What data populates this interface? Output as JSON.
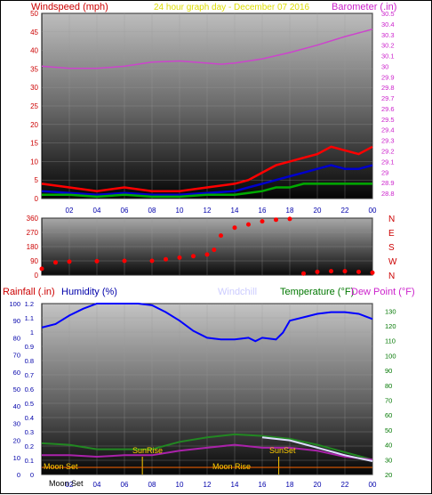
{
  "chart_data": [
    {
      "type": "line",
      "panel": "wind-baro",
      "title": "24 hour graph day - December 07 2016",
      "left_axis_label": "Windspeed (mph)",
      "right_axis_label": "Barometer (.in)",
      "x_ticks": [
        "02",
        "04",
        "06",
        "08",
        "10",
        "12",
        "14",
        "16",
        "18",
        "20",
        "22",
        "00"
      ],
      "left_ticks": [
        "0",
        "5",
        "10",
        "15",
        "20",
        "25",
        "30",
        "35",
        "40",
        "45",
        "50"
      ],
      "right_ticks": [
        "28.8",
        "28.9",
        "29",
        "29.1",
        "29.2",
        "29.3",
        "29.4",
        "29.5",
        "29.6",
        "29.7",
        "29.8",
        "29.9",
        "30",
        "30.1",
        "30.2",
        "30.3",
        "30.4",
        "30.5"
      ],
      "left_ylim": [
        0,
        50
      ],
      "right_ylim": [
        28.75,
        30.5
      ],
      "grid": true,
      "series": [
        {
          "axis": "right",
          "color": "#cc44cc",
          "x": [
            0,
            2,
            4,
            6,
            8,
            10,
            12,
            13,
            14,
            16,
            18,
            20,
            22,
            24
          ],
          "values": [
            30.0,
            29.98,
            29.98,
            30.0,
            30.04,
            30.05,
            30.03,
            30.02,
            30.03,
            30.07,
            30.13,
            30.2,
            30.28,
            30.35
          ]
        },
        {
          "color": "#ff0000",
          "x": [
            0,
            2,
            4,
            6,
            8,
            10,
            12,
            14,
            15,
            16,
            17,
            18,
            19,
            20,
            21,
            22,
            23,
            24
          ],
          "values": [
            4,
            3,
            2,
            3,
            2,
            2,
            3,
            4,
            5,
            7,
            9,
            10,
            11,
            12,
            14,
            13,
            12,
            14
          ]
        },
        {
          "color": "#0000cc",
          "x": [
            0,
            2,
            4,
            6,
            8,
            10,
            12,
            14,
            15,
            16,
            17,
            18,
            19,
            20,
            21,
            22,
            23,
            24
          ],
          "values": [
            2,
            1.5,
            1,
            1.5,
            1,
            1,
            1.5,
            2,
            3,
            4,
            5,
            6,
            7,
            8,
            9,
            8,
            8,
            9
          ]
        },
        {
          "color": "#00aa00",
          "x": [
            0,
            2,
            4,
            6,
            8,
            10,
            12,
            14,
            15,
            16,
            17,
            18,
            19,
            20,
            21,
            22,
            23,
            24
          ],
          "values": [
            1,
            1,
            0.5,
            1,
            0.5,
            0.5,
            1,
            1,
            1.5,
            2,
            3,
            3,
            4,
            4,
            4,
            4,
            4,
            4
          ]
        }
      ]
    },
    {
      "type": "scatter",
      "panel": "wind-direction",
      "left_ticks": [
        "0",
        "90",
        "180",
        "270",
        "360"
      ],
      "right_labels": [
        "N",
        "W",
        "S",
        "E",
        "N"
      ],
      "ylim": [
        0,
        360
      ],
      "grid": true,
      "series": [
        {
          "color": "#ff0000",
          "x": [
            0,
            1,
            2,
            4,
            6,
            8,
            9,
            10,
            11,
            12,
            12.5,
            13,
            14,
            15,
            16,
            17,
            18,
            19,
            20,
            21,
            22,
            23,
            24
          ],
          "values": [
            40,
            80,
            85,
            88,
            90,
            90,
            100,
            110,
            120,
            130,
            160,
            250,
            300,
            320,
            340,
            350,
            355,
            10,
            20,
            25,
            25,
            20,
            15
          ]
        }
      ]
    },
    {
      "type": "line",
      "panel": "rain-hum-temp",
      "left_axis_label": "Rainfall (.in)",
      "left2_axis_label": "Humidity (%)",
      "windchill_label": "Windchill",
      "temperature_label": "Temperature (°F)",
      "dewpoint_label": "Dew Point (°F)",
      "x_ticks": [
        "02",
        "04",
        "06",
        "08",
        "10",
        "12",
        "14",
        "16",
        "18",
        "20",
        "22",
        "00"
      ],
      "rain_ticks": [
        "0",
        "0.1",
        "0.2",
        "0.3",
        "0.4",
        "0.5",
        "0.6",
        "0.7",
        "0.8",
        "0.9",
        "1",
        "1.1",
        "1.2"
      ],
      "humidity_ticks": [
        "0",
        "10",
        "20",
        "30",
        "40",
        "50",
        "60",
        "70",
        "80",
        "90",
        "100"
      ],
      "temp_ticks": [
        "20",
        "30",
        "40",
        "50",
        "60",
        "70",
        "80",
        "90",
        "100",
        "110",
        "120",
        "130"
      ],
      "rain_ylim": [
        0,
        1.2
      ],
      "humidity_ylim": [
        0,
        100
      ],
      "temp_ylim": [
        20,
        135
      ],
      "grid": true,
      "annotations": [
        "Moon Set",
        "SunRise",
        "Moon Rise",
        "SunSet"
      ],
      "bottom_label": "Moon Set",
      "series": [
        {
          "name": "Humidity (%)",
          "color": "#0000ff",
          "x": [
            0,
            1,
            2,
            3,
            4,
            5,
            6,
            7,
            8,
            9,
            10,
            11,
            12,
            13,
            14,
            15,
            15.5,
            16,
            17,
            17.5,
            18,
            19,
            20,
            21,
            22,
            23,
            24
          ],
          "values": [
            86,
            88,
            93,
            97,
            100,
            100,
            100,
            100,
            99,
            95,
            90,
            84,
            80,
            79,
            79,
            80,
            78,
            80,
            79,
            83,
            90,
            92,
            94,
            95,
            95,
            94,
            91
          ]
        },
        {
          "name": "Temperature (°F)",
          "color": "#228822",
          "x": [
            0,
            2,
            4,
            6,
            8,
            10,
            12,
            14,
            16,
            18,
            20,
            22,
            24
          ],
          "values": [
            41,
            40,
            37,
            37,
            37,
            42,
            45,
            47,
            46,
            44,
            40,
            35,
            30
          ]
        },
        {
          "name": "Dew Point (°F)",
          "color": "#aa22aa",
          "x": [
            0,
            2,
            4,
            6,
            8,
            10,
            12,
            14,
            16,
            18,
            20,
            22,
            24
          ],
          "values": [
            33,
            33,
            32,
            33,
            33,
            36,
            38,
            40,
            38,
            38,
            36,
            32,
            30
          ]
        },
        {
          "name": "Windchill",
          "color": "#ddddff",
          "x": [
            16,
            18,
            20,
            22,
            24
          ],
          "values": [
            45,
            43,
            38,
            33,
            29
          ]
        }
      ]
    }
  ]
}
